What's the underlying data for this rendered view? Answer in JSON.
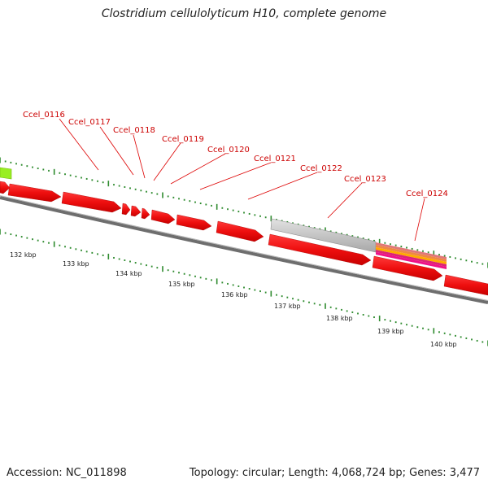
{
  "title": "Clostridium cellulolyticum H10, complete genome",
  "footer": {
    "accession": "Accession: NC_011898",
    "summary": "Topology: circular; Length: 4,068,724 bp; Genes: 3,477"
  },
  "colors": {
    "cds": "#ee1111",
    "rna": "#c8c8c8",
    "backbone": "#7d7d7d",
    "ticks": "#2e8b2e",
    "label": "#cc0000",
    "green_feature": "#99ee22"
  },
  "gene_labels": [
    "Ccel_0116",
    "Ccel_0117",
    "Ccel_0118",
    "Ccel_0119",
    "Ccel_0120",
    "Ccel_0121",
    "Ccel_0122",
    "Ccel_0123",
    "Ccel_0124"
  ],
  "kbp_labels": [
    "132 kbp",
    "133 kbp",
    "134 kbp",
    "135 kbp",
    "136 kbp",
    "137 kbp",
    "138 kbp",
    "139 kbp",
    "140 kbp"
  ]
}
